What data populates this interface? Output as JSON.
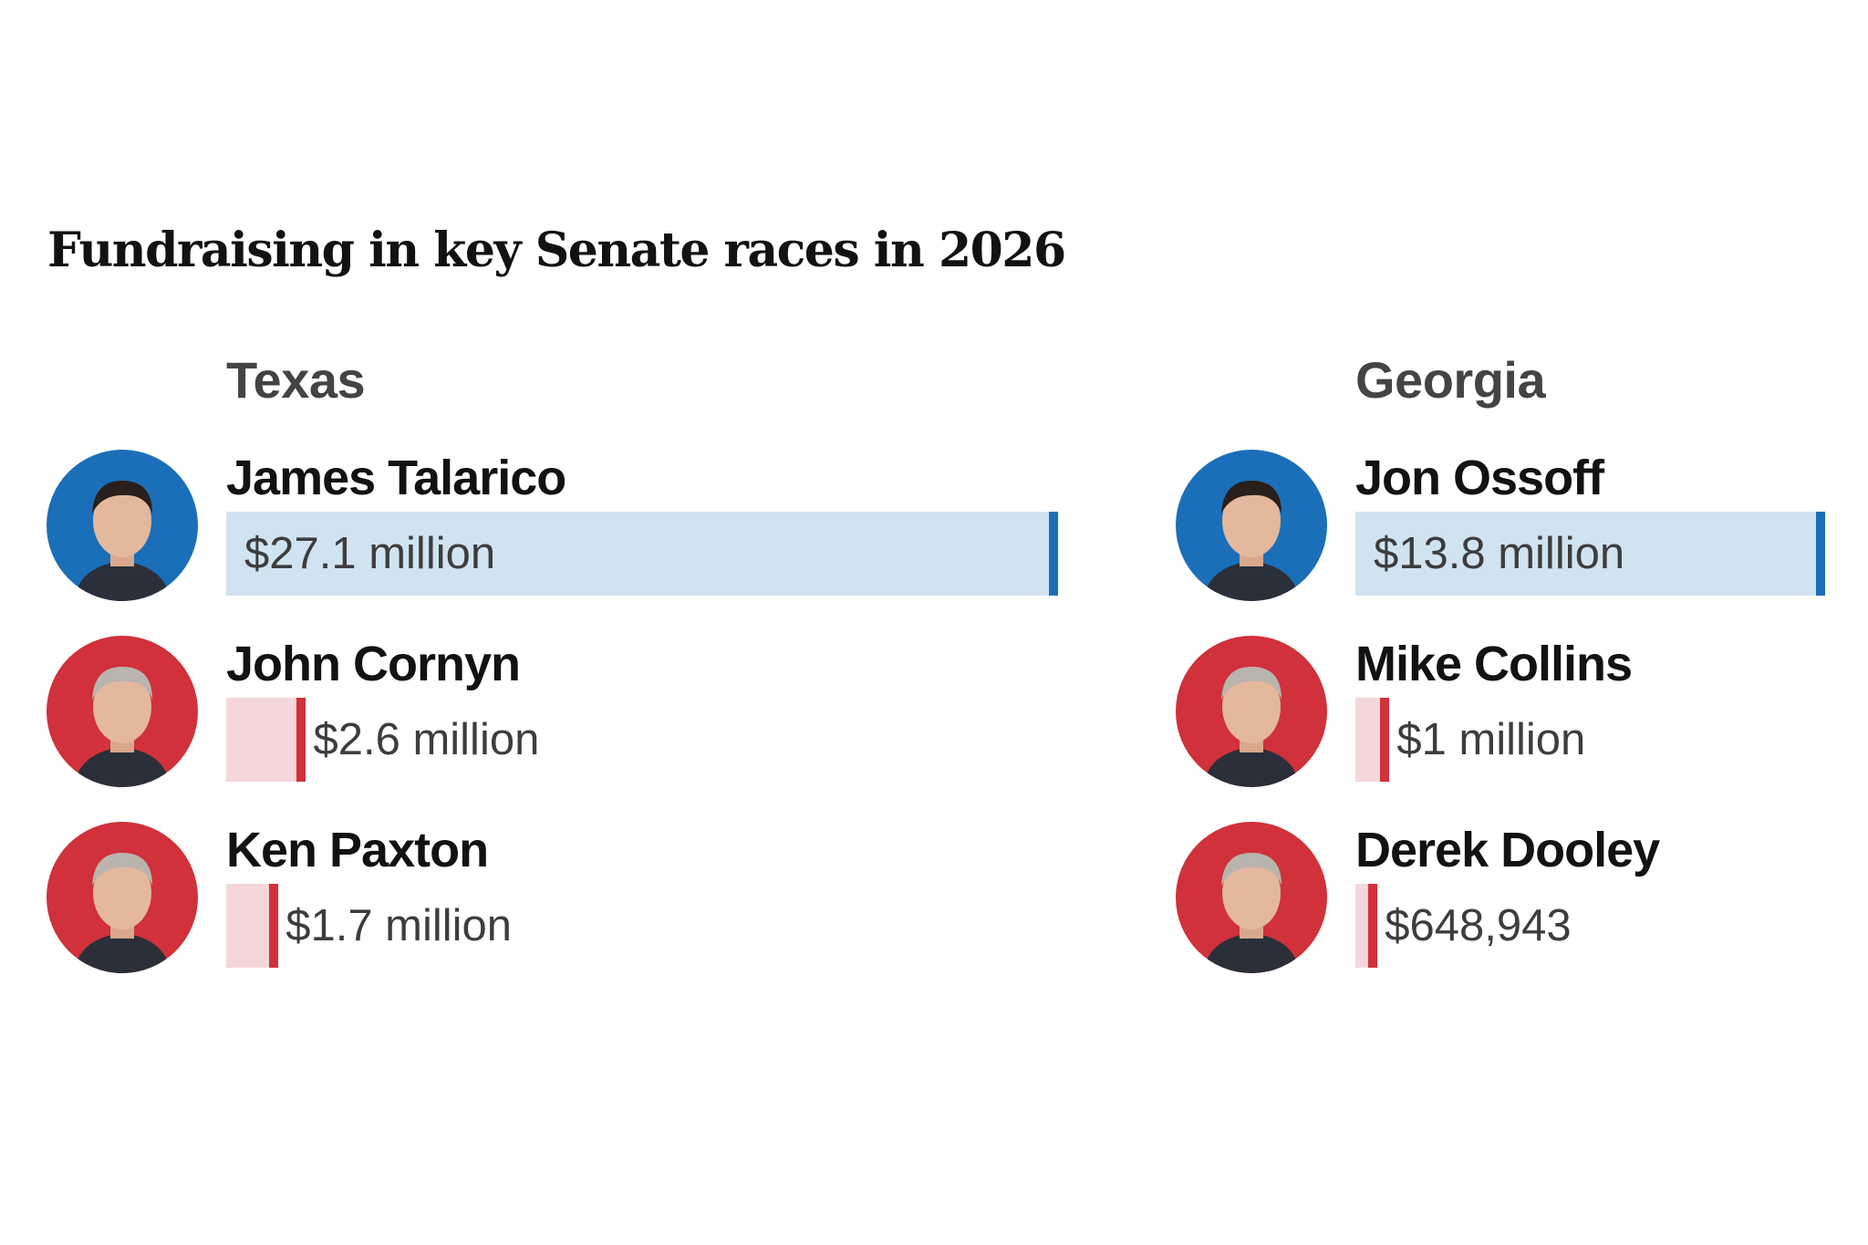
{
  "chart_data": {
    "type": "bar",
    "title": "Fundraising in key Senate races in 2026",
    "orientation": "horizontal",
    "units": "US dollars",
    "colors": {
      "democrat": "#1a6fb8",
      "democrat_light": "#d0e3f0",
      "republican": "#d0313a",
      "republican_light": "#f5d7d9"
    },
    "races": [
      {
        "state": "Texas",
        "candidates": [
          {
            "name": "James Talarico",
            "party": "democrat",
            "value": 27100000,
            "label": "$27.1 million",
            "photo": "portrait"
          },
          {
            "name": "John Cornyn",
            "party": "republican",
            "value": 2600000,
            "label": "$2.6 million",
            "photo": "portrait"
          },
          {
            "name": "Ken Paxton",
            "party": "republican",
            "value": 1700000,
            "label": "$1.7 million",
            "photo": "portrait"
          }
        ]
      },
      {
        "state": "Georgia",
        "candidates": [
          {
            "name": "Jon Ossoff",
            "party": "democrat",
            "value": 13800000,
            "label": "$13.8 million",
            "photo": "portrait"
          },
          {
            "name": "Mike Collins",
            "party": "republican",
            "value": 1000000,
            "label": "$1 million",
            "photo": "portrait"
          },
          {
            "name": "Derek Dooley",
            "party": "republican",
            "value": 648943,
            "label": "$648,943",
            "photo": "portrait"
          }
        ]
      }
    ]
  }
}
